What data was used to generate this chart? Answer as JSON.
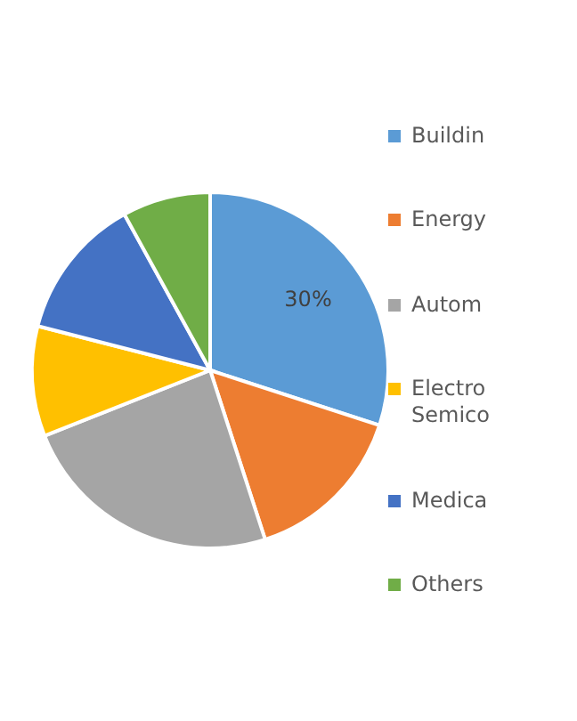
{
  "chart_data": {
    "type": "pie",
    "categories": [
      "Buildin",
      "Energy",
      "Autom",
      "Electro Semico",
      "Medica",
      "Others"
    ],
    "values": [
      30,
      15,
      24,
      10,
      13,
      8
    ],
    "colors": [
      "#5b9bd5",
      "#ed7d31",
      "#a5a5a5",
      "#ffc000",
      "#4472c4",
      "#70ad47"
    ],
    "value_labels": [
      "30%",
      null,
      null,
      null,
      null,
      null
    ],
    "legend": "right"
  }
}
